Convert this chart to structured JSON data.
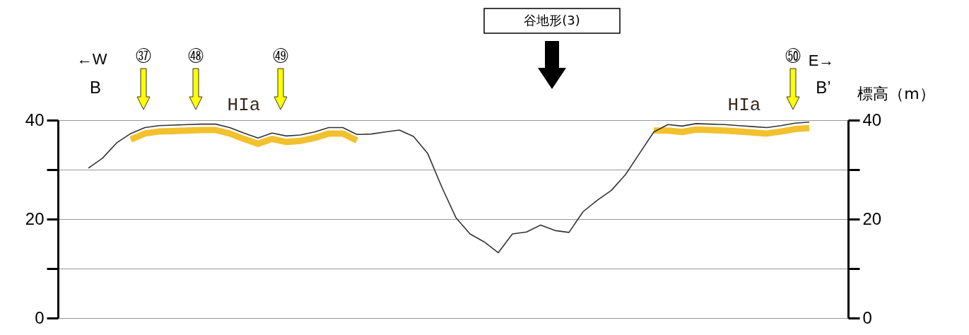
{
  "chart_data": {
    "type": "line",
    "y2label": "標高（m）",
    "categories": [
      null,
      null,
      null,
      null,
      null,
      null,
      null,
      null,
      null,
      null,
      null,
      null,
      null,
      null,
      null,
      null,
      null,
      null,
      null,
      null,
      null,
      null,
      null,
      null,
      null,
      null,
      null,
      null,
      null,
      null,
      null,
      null,
      null,
      null,
      null,
      null,
      null,
      null,
      null,
      null,
      null,
      null,
      null,
      null,
      null,
      null,
      null,
      null,
      null,
      null,
      null,
      null,
      null,
      null,
      null,
      null
    ],
    "series": [
      {
        "color": "#333333",
        "values": [
          null,
          null,
          30.3,
          32.3,
          35.4,
          37.3,
          38.5,
          38.9,
          39.0,
          39.1,
          39.2,
          39.2,
          38.5,
          37.4,
          36.4,
          37.4,
          36.8,
          37.0,
          37.6,
          38.5,
          38.5,
          37.1,
          37.2,
          37.6,
          38.0,
          36.7,
          33.3,
          26.5,
          20.3,
          17.0,
          15.4,
          13.2,
          17.0,
          17.4,
          18.8,
          17.7,
          17.3,
          21.5,
          23.8,
          25.8,
          29.0,
          33.3,
          37.6,
          39.1,
          38.8,
          39.3,
          39.2,
          39.1,
          38.9,
          38.7,
          38.5,
          38.9,
          39.4,
          39.6,
          null,
          null
        ]
      },
      {
        "color": "#f2c12e",
        "values": [
          null,
          null,
          null,
          null,
          null,
          36.1,
          37.3,
          37.7,
          37.8,
          37.9,
          38.0,
          38.0,
          37.3,
          36.2,
          35.2,
          36.2,
          35.6,
          35.8,
          36.4,
          37.3,
          37.3,
          35.9,
          null,
          null,
          null,
          null,
          null,
          null,
          null,
          null,
          null,
          null,
          null,
          null,
          null,
          null,
          null,
          null,
          null,
          null,
          null,
          null,
          37.9,
          37.9,
          37.6,
          38.1,
          38.0,
          37.9,
          37.7,
          37.5,
          37.3,
          37.7,
          38.2,
          38.4,
          null,
          null
        ]
      }
    ],
    "ylim": [
      0,
      40
    ],
    "yticks": [
      0,
      {
        "value": 10,
        "label": null
      },
      20,
      {
        "value": 30,
        "label": null
      },
      40
    ],
    "y2lim": [
      0,
      40
    ],
    "y2ticks": [
      0,
      {
        "value": 10,
        "label": null
      },
      20,
      {
        "value": 30,
        "label": null
      },
      40
    ],
    "grid": "y",
    "tick_labels": "y",
    "annotations": [
      "←W",
      "B",
      "㊲",
      "㊽",
      "HIa",
      "㊾",
      "谷地形(3)",
      "HIa",
      "㊿",
      "E→",
      "B’"
    ]
  }
}
